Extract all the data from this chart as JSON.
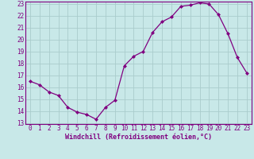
{
  "x": [
    0,
    1,
    2,
    3,
    4,
    5,
    6,
    7,
    8,
    9,
    10,
    11,
    12,
    13,
    14,
    15,
    16,
    17,
    18,
    19,
    20,
    21,
    22,
    23
  ],
  "y": [
    16.5,
    16.2,
    15.6,
    15.3,
    14.3,
    13.9,
    13.7,
    13.3,
    14.3,
    14.9,
    17.8,
    18.6,
    19.0,
    20.6,
    21.5,
    21.9,
    22.8,
    22.9,
    23.1,
    23.0,
    22.1,
    20.5,
    18.5,
    17.2
  ],
  "line_color": "#800080",
  "marker": "D",
  "marker_size": 2.5,
  "bg_color": "#c8e8e8",
  "grid_color": "#aacccc",
  "xlabel": "Windchill (Refroidissement éolien,°C)",
  "xlabel_color": "#800080",
  "tick_color": "#800080",
  "ylim": [
    13,
    23
  ],
  "xlim": [
    -0.5,
    23.5
  ],
  "yticks": [
    13,
    14,
    15,
    16,
    17,
    18,
    19,
    20,
    21,
    22,
    23
  ],
  "xticks": [
    0,
    1,
    2,
    3,
    4,
    5,
    6,
    7,
    8,
    9,
    10,
    11,
    12,
    13,
    14,
    15,
    16,
    17,
    18,
    19,
    20,
    21,
    22,
    23
  ],
  "tick_fontsize": 5.5,
  "xlabel_fontsize": 6.0
}
